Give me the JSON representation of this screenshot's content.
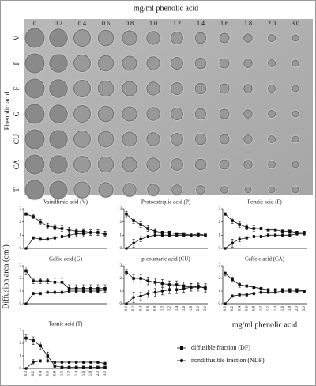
{
  "plate": {
    "title": "mg/ml phenolic acid",
    "concentrations": [
      "0",
      "0.2",
      "0.4",
      "0.6",
      "0.8",
      "1.0",
      "1.2",
      "1.4",
      "1.6",
      "1.8",
      "2.0",
      "3.0"
    ],
    "row_axis_label": "Phenolic acid",
    "rows": [
      "V",
      "P",
      "F",
      "G",
      "CU",
      "CA",
      "T"
    ]
  },
  "y_label": "Diffusion area (cm²)",
  "x_label": "mg/ml phenolic acid",
  "chart_data": [
    {
      "type": "line",
      "title": "Vainillimic acid (V)",
      "ylim": [
        0,
        3
      ],
      "yticks": [
        0,
        1,
        2,
        3
      ],
      "series": [
        {
          "name": "diffusible fraction (DF)",
          "color": "#111111",
          "marker": "square",
          "values": [
            2.6,
            2.4,
            2.0,
            1.7,
            1.6,
            1.5,
            1.4,
            1.3,
            1.3,
            1.2,
            1.2,
            1.1
          ],
          "errors": [
            0.1,
            0.15,
            0.2,
            0.2,
            0.2,
            0.2,
            0.2,
            0.2,
            0.2,
            0.2,
            0.2,
            0.2
          ]
        },
        {
          "name": "nondiffusible fraction (NDF)",
          "color": "#111111",
          "marker": "circle",
          "values": [
            0,
            0.8,
            0.7,
            0.7,
            0.8,
            0.9,
            1.0,
            1.1,
            1.1,
            1.2,
            1.2,
            1.1
          ],
          "errors": [
            0,
            0.1,
            0.1,
            0.1,
            0.1,
            0.1,
            0.2,
            0.2,
            0.2,
            0.2,
            0.2,
            0.2
          ]
        }
      ]
    },
    {
      "type": "line",
      "title": "Protocatequic acid (P)",
      "ylim": [
        0,
        3
      ],
      "yticks": [
        0,
        1,
        2,
        3
      ],
      "series": [
        {
          "name": "diffusible fraction (DF)",
          "color": "#111111",
          "marker": "square",
          "values": [
            2.6,
            2.1,
            1.8,
            1.5,
            1.3,
            1.2,
            1.2,
            1.1,
            1.1,
            1.0,
            1.1,
            1.0
          ],
          "errors": [
            0.2,
            0.2,
            0.2,
            0.2,
            0.2,
            0.1,
            0.1,
            0.1,
            0.1,
            0.1,
            0.1,
            0.1
          ]
        },
        {
          "name": "nondiffusible fraction (NDF)",
          "color": "#111111",
          "marker": "circle",
          "values": [
            0,
            0.4,
            0.7,
            0.9,
            1.0,
            1.0,
            1.0,
            1.0,
            1.0,
            1.0,
            1.0,
            1.0
          ],
          "errors": [
            0,
            0.3,
            0.2,
            0.1,
            0.1,
            0.1,
            0.1,
            0.1,
            0.1,
            0.1,
            0.1,
            0.1
          ]
        }
      ]
    },
    {
      "type": "line",
      "title": "Ferulic acid (F)",
      "ylim": [
        0,
        3
      ],
      "yticks": [
        0,
        1,
        2,
        3
      ],
      "series": [
        {
          "name": "diffusible fraction (DF)",
          "color": "#111111",
          "marker": "square",
          "values": [
            2.6,
            2.1,
            1.8,
            1.6,
            1.5,
            1.5,
            1.4,
            1.4,
            1.3,
            1.3,
            1.2,
            1.2
          ],
          "errors": [
            0.1,
            0.2,
            0.2,
            0.2,
            0.2,
            0.1,
            0.1,
            0.1,
            0.1,
            0.1,
            0.1,
            0.1
          ]
        },
        {
          "name": "nondiffusible fraction (NDF)",
          "color": "#111111",
          "marker": "circle",
          "values": [
            0,
            0.4,
            0.7,
            0.8,
            0.9,
            0.9,
            1.0,
            1.0,
            1.0,
            1.0,
            1.1,
            1.1
          ],
          "errors": [
            0,
            0.3,
            0.2,
            0.1,
            0.1,
            0.1,
            0.1,
            0.1,
            0.1,
            0.1,
            0.1,
            0.1
          ]
        }
      ]
    },
    {
      "type": "line",
      "title": "Gallic acid (G)",
      "ylim": [
        0,
        3
      ],
      "yticks": [
        0,
        1,
        2,
        3
      ],
      "series": [
        {
          "name": "diffusible fraction (DF)",
          "color": "#111111",
          "marker": "square",
          "values": [
            2.6,
            1.8,
            1.8,
            1.8,
            1.7,
            1.7,
            1.2,
            1.2,
            1.2,
            1.2,
            1.2,
            1.2
          ],
          "errors": [
            0.3,
            0.2,
            0.2,
            0.2,
            0.3,
            0.3,
            0.3,
            0.3,
            0.3,
            0.3,
            0.3,
            0.3
          ]
        },
        {
          "name": "nondiffusible fraction (NDF)",
          "color": "#111111",
          "marker": "circle",
          "values": [
            0,
            0.8,
            0.8,
            0.9,
            0.9,
            0.9,
            1.0,
            1.0,
            1.0,
            1.0,
            1.0,
            1.1
          ],
          "errors": [
            0,
            0.1,
            0.1,
            0.1,
            0.1,
            0.1,
            0.1,
            0.1,
            0.1,
            0.1,
            0.1,
            0.1
          ]
        }
      ]
    },
    {
      "type": "line",
      "title": "p-coumaric acid (CU)",
      "ylim": [
        0,
        3
      ],
      "yticks": [
        0,
        1,
        2,
        3
      ],
      "categories": [
        "0.0",
        "0.2",
        "0.4",
        "0.6",
        "0.8",
        "1.0",
        "1.2",
        "1.4",
        "1.6",
        "1.8",
        "2.0",
        "3.0"
      ],
      "series": [
        {
          "name": "diffusible fraction (DF)",
          "color": "#111111",
          "marker": "square",
          "values": [
            2.5,
            2.0,
            2.0,
            1.8,
            1.7,
            1.6,
            1.5,
            1.5,
            1.4,
            1.3,
            1.4,
            1.2
          ],
          "errors": [
            0.2,
            0.3,
            0.3,
            0.3,
            0.3,
            0.3,
            0.3,
            0.3,
            0.3,
            0.3,
            0.3,
            0.3
          ]
        },
        {
          "name": "nondiffusible fraction (NDF)",
          "color": "#111111",
          "marker": "circle",
          "values": [
            0,
            0.5,
            0.6,
            0.8,
            0.9,
            1.0,
            1.1,
            1.1,
            1.2,
            1.3,
            1.3,
            1.3
          ],
          "errors": [
            0,
            0.4,
            0.3,
            0.3,
            0.3,
            0.3,
            0.3,
            0.3,
            0.3,
            0.3,
            0.3,
            0.3
          ]
        }
      ]
    },
    {
      "type": "line",
      "title": "Caffeic acid (CA)",
      "ylim": [
        0,
        3
      ],
      "yticks": [
        0,
        1,
        2,
        3
      ],
      "categories": [
        "0.0",
        "0.2",
        "0.4",
        "0.6",
        "0.8",
        "1.0",
        "1.2",
        "1.4",
        "1.6",
        "1.8",
        "2.0",
        "3.0"
      ],
      "series": [
        {
          "name": "diffusible fraction (DF)",
          "color": "#111111",
          "marker": "square",
          "values": [
            2.4,
            1.9,
            1.5,
            1.4,
            1.3,
            1.2,
            1.1,
            1.1,
            1.1,
            1.1,
            1.1,
            1.0
          ],
          "errors": [
            0.2,
            0.2,
            0.2,
            0.1,
            0.1,
            0.1,
            0.1,
            0.1,
            0.1,
            0.1,
            0.1,
            0.1
          ]
        },
        {
          "name": "nondiffusible fraction (NDF)",
          "color": "#111111",
          "marker": "circle",
          "values": [
            0,
            0.6,
            0.7,
            0.7,
            0.8,
            0.9,
            0.9,
            0.9,
            1.0,
            1.0,
            1.0,
            1.0
          ],
          "errors": [
            0,
            0.1,
            0.1,
            0.1,
            0.1,
            0.1,
            0.1,
            0.1,
            0.1,
            0.1,
            0.1,
            0.1
          ]
        }
      ]
    },
    {
      "type": "line",
      "title": "Tannic acid (T)",
      "ylim": [
        0,
        3
      ],
      "yticks": [
        0,
        1,
        2,
        3
      ],
      "categories": [
        "0.0",
        "0.2",
        "0.4",
        "0.6",
        "0.8",
        "1.0",
        "1.2",
        "1.4",
        "1.6",
        "1.8",
        "2.0",
        "3.0"
      ],
      "series": [
        {
          "name": "diffusible fraction (DF)",
          "color": "#111111",
          "marker": "square",
          "values": [
            2.4,
            2.2,
            1.8,
            1.0,
            0.2,
            0.1,
            0.1,
            0.1,
            0.1,
            0.1,
            0.1,
            0.1
          ],
          "errors": [
            0.3,
            0.3,
            0.3,
            0.3,
            0.1,
            0.05,
            0.05,
            0.05,
            0.05,
            0.05,
            0.05,
            0.05
          ]
        },
        {
          "name": "nondiffusible fraction (NDF)",
          "color": "#111111",
          "marker": "circle",
          "values": [
            0,
            0.5,
            0.6,
            0.6,
            0.5,
            0.5,
            0.5,
            0.5,
            0.5,
            0.5,
            0.5,
            0.4
          ],
          "errors": [
            0,
            0.2,
            0.1,
            0.1,
            0.1,
            0.1,
            0.1,
            0.1,
            0.1,
            0.1,
            0.1,
            0.1
          ]
        }
      ]
    }
  ]
}
